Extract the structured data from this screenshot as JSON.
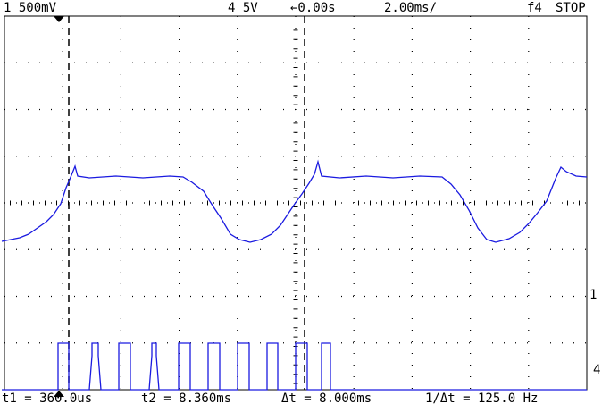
{
  "header": {
    "channel1": "1 500mV",
    "channel4": "4 5V",
    "delay": "←0.00s",
    "timebase": "2.00ms/",
    "trigger": "f4",
    "status": "STOP"
  },
  "markers": {
    "channel1": "1",
    "channel4": "4"
  },
  "footer": {
    "t1": "t1 = 360.0us",
    "t2": "t2 = 8.360ms",
    "delta": "Δt = 8.000ms",
    "frequency": "1/Δt = 125.0 Hz"
  }
}
